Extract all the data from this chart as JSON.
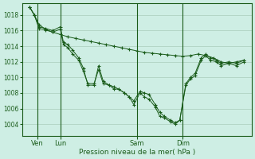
{
  "bg_color": "#ceeee4",
  "grid_color": "#aaccbb",
  "line_color": "#1a5c1a",
  "xlabel": "Pression niveau de la mer( hPa )",
  "xlabel_color": "#1a5c1a",
  "yticks": [
    1004,
    1006,
    1008,
    1010,
    1012,
    1014,
    1016,
    1018
  ],
  "ylim": [
    1002.5,
    1019.5
  ],
  "xlim": [
    -0.5,
    14.5
  ],
  "xtick_labels": [
    "Ven",
    "Lun",
    "Sam",
    "Dim"
  ],
  "xtick_positions": [
    0.5,
    2.0,
    7.0,
    10.0
  ],
  "vline_positions": [
    0.5,
    2.0,
    7.0,
    10.0
  ],
  "s1_x": [
    0.0,
    0.3,
    0.6,
    1.0,
    1.5,
    2.0,
    2.5,
    3.0,
    3.5,
    4.0,
    4.5,
    5.0,
    5.5,
    6.0,
    6.5,
    7.0,
    7.5,
    8.0,
    8.5,
    9.0,
    9.5,
    10.0,
    10.5,
    11.0,
    11.5,
    12.0,
    12.5,
    13.0,
    13.5,
    14.0
  ],
  "s1_y": [
    1019.0,
    1018.0,
    1016.8,
    1016.2,
    1015.8,
    1015.5,
    1015.2,
    1015.0,
    1014.8,
    1014.6,
    1014.4,
    1014.2,
    1014.0,
    1013.8,
    1013.6,
    1013.4,
    1013.2,
    1013.1,
    1013.0,
    1012.9,
    1012.8,
    1012.7,
    1012.8,
    1013.0,
    1012.8,
    1012.5,
    1012.0,
    1011.8,
    1012.0,
    1012.2
  ],
  "s2_x": [
    0.0,
    0.3,
    0.6,
    1.0,
    1.5,
    2.0,
    2.2,
    2.5,
    2.8,
    3.2,
    3.5,
    3.8,
    4.2,
    4.5,
    4.8,
    5.2,
    5.5,
    5.8,
    6.2,
    6.5,
    6.8,
    7.2,
    7.5,
    7.8,
    8.2,
    8.5,
    8.8,
    9.2,
    9.5,
    9.8,
    10.2,
    10.5,
    10.8,
    11.2,
    11.5,
    11.8,
    12.2,
    12.5,
    13.0,
    13.5,
    14.0
  ],
  "s2_y": [
    1019.0,
    1018.0,
    1016.5,
    1016.3,
    1016.0,
    1016.5,
    1014.5,
    1014.2,
    1013.5,
    1012.5,
    1011.2,
    1009.0,
    1009.0,
    1011.5,
    1009.5,
    1009.0,
    1008.5,
    1008.5,
    1008.0,
    1007.5,
    1007.0,
    1008.2,
    1008.0,
    1007.8,
    1006.5,
    1005.5,
    1005.0,
    1004.5,
    1004.2,
    1004.5,
    1009.2,
    1010.0,
    1010.5,
    1012.5,
    1013.0,
    1012.5,
    1012.2,
    1011.8,
    1012.0,
    1011.8,
    1012.2
  ],
  "s3_x": [
    0.0,
    0.3,
    0.6,
    1.0,
    1.5,
    2.0,
    2.2,
    2.5,
    2.8,
    3.2,
    3.5,
    3.8,
    4.2,
    4.5,
    4.8,
    5.2,
    5.5,
    5.8,
    6.2,
    6.5,
    6.8,
    7.2,
    7.5,
    7.8,
    8.2,
    8.5,
    8.8,
    9.2,
    9.5,
    9.8,
    10.2,
    10.5,
    10.8,
    11.2,
    11.5,
    11.8,
    12.2,
    12.5,
    13.0,
    13.5,
    14.0
  ],
  "s3_y": [
    1019.0,
    1018.0,
    1016.3,
    1016.1,
    1015.8,
    1016.2,
    1014.2,
    1013.8,
    1013.0,
    1012.2,
    1010.8,
    1009.2,
    1009.2,
    1011.0,
    1009.2,
    1009.0,
    1008.8,
    1008.5,
    1008.0,
    1007.5,
    1006.5,
    1008.0,
    1007.5,
    1007.2,
    1006.2,
    1005.0,
    1004.8,
    1004.3,
    1004.0,
    1004.5,
    1009.0,
    1009.8,
    1010.2,
    1012.2,
    1012.8,
    1012.2,
    1012.0,
    1011.5,
    1011.8,
    1011.5,
    1012.0
  ]
}
